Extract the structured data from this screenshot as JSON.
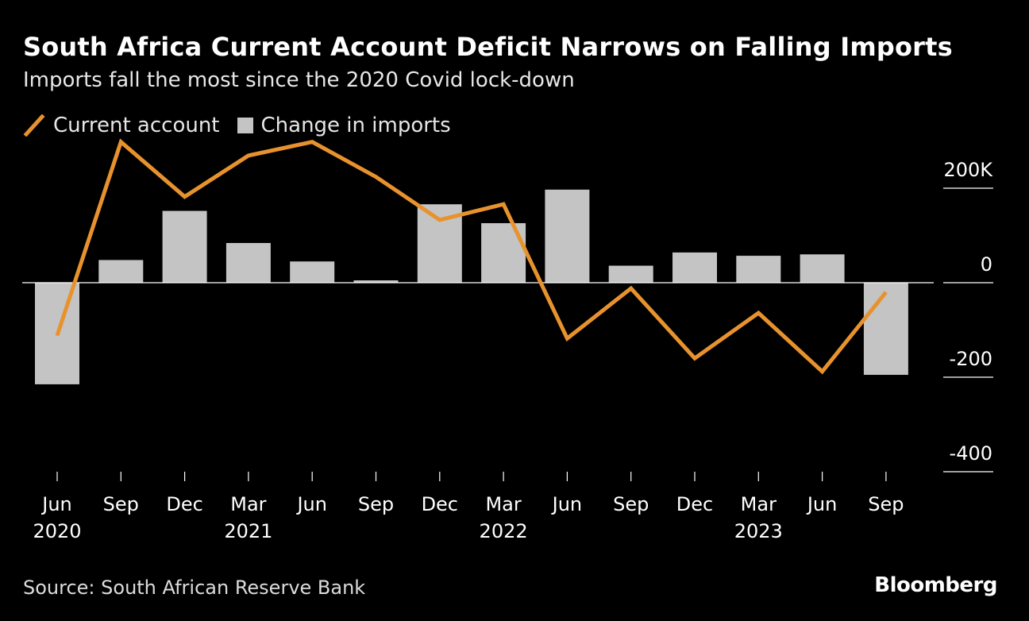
{
  "header": {
    "title": "South Africa Current Account Deficit Narrows on Falling Imports",
    "subtitle": "Imports fall the most since the 2020 Covid lock-down"
  },
  "legend": {
    "line_label": "Current account",
    "bar_label": "Change in imports"
  },
  "footer": {
    "source": "Source: South African Reserve Bank",
    "brand": "Bloomberg"
  },
  "colors": {
    "background": "#000000",
    "line": "#e8922e",
    "bars": "#c4c4c4",
    "text": "#ffffff",
    "axis": "#ffffff"
  },
  "chart_data": {
    "type": "bar",
    "categories": [
      "Jun 2020",
      "Sep",
      "Dec",
      "Mar 2021",
      "Jun",
      "Sep",
      "Dec",
      "Mar 2022",
      "Jun",
      "Sep",
      "Dec",
      "Mar 2023",
      "Jun",
      "Sep"
    ],
    "x_tick_months": [
      "Jun",
      "Sep",
      "Dec",
      "Mar",
      "Jun",
      "Sep",
      "Dec",
      "Mar",
      "Jun",
      "Sep",
      "Dec",
      "Mar",
      "Jun",
      "Sep"
    ],
    "x_tick_years": [
      "2020",
      "",
      "",
      "2021",
      "",
      "",
      "",
      "2022",
      "",
      "",
      "",
      "2023",
      "",
      ""
    ],
    "y_ticks": [
      "200K",
      "0",
      "-200",
      "-400"
    ],
    "y_tick_values": [
      200,
      0,
      -200,
      -400
    ],
    "ylim": [
      -420,
      300
    ],
    "legend_position": "top-left",
    "y_axis_side": "right",
    "series": [
      {
        "name": "Change in imports",
        "type": "bar",
        "values": [
          -215,
          48,
          152,
          84,
          45,
          5,
          166,
          126,
          197,
          36,
          64,
          57,
          60,
          -195
        ]
      },
      {
        "name": "Current account",
        "type": "line",
        "values": [
          -112,
          298,
          182,
          269,
          298,
          224,
          133,
          166,
          -118,
          -12,
          -160,
          -64,
          -188,
          -20
        ]
      }
    ]
  }
}
